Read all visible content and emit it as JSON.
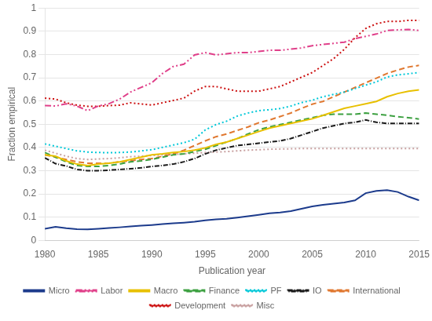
{
  "chart_data": {
    "type": "line",
    "xlabel": "Publication year",
    "ylabel": "Fraction empirical",
    "x": [
      1980,
      1981,
      1982,
      1983,
      1984,
      1985,
      1986,
      1987,
      1988,
      1989,
      1990,
      1991,
      1992,
      1993,
      1994,
      1995,
      1996,
      1997,
      1998,
      1999,
      2000,
      2001,
      2002,
      2003,
      2004,
      2005,
      2006,
      2007,
      2008,
      2009,
      2010,
      2011,
      2012,
      2013,
      2014,
      2015
    ],
    "series": [
      {
        "name": "Micro",
        "color": "#1c3b8c",
        "line_style": "solid",
        "values": [
          0.05,
          0.058,
          0.052,
          0.048,
          0.047,
          0.05,
          0.053,
          0.056,
          0.06,
          0.063,
          0.066,
          0.07,
          0.073,
          0.076,
          0.08,
          0.086,
          0.09,
          0.093,
          0.098,
          0.104,
          0.11,
          0.116,
          0.12,
          0.126,
          0.136,
          0.146,
          0.153,
          0.158,
          0.163,
          0.172,
          0.203,
          0.213,
          0.216,
          0.208,
          0.188,
          0.172
        ]
      },
      {
        "name": "Labor",
        "color": "#e0408a",
        "line_style": "dashdotdot",
        "values": [
          0.58,
          0.578,
          0.588,
          0.578,
          0.558,
          0.578,
          0.588,
          0.608,
          0.638,
          0.658,
          0.678,
          0.718,
          0.748,
          0.758,
          0.798,
          0.808,
          0.798,
          0.803,
          0.808,
          0.808,
          0.813,
          0.818,
          0.818,
          0.823,
          0.828,
          0.838,
          0.843,
          0.848,
          0.853,
          0.868,
          0.878,
          0.888,
          0.903,
          0.906,
          0.908,
          0.903
        ]
      },
      {
        "name": "Macro",
        "color": "#e8c000",
        "line_style": "solid",
        "values": [
          0.368,
          0.362,
          0.342,
          0.328,
          0.322,
          0.328,
          0.332,
          0.338,
          0.348,
          0.358,
          0.368,
          0.372,
          0.378,
          0.382,
          0.388,
          0.398,
          0.413,
          0.423,
          0.438,
          0.453,
          0.468,
          0.483,
          0.493,
          0.503,
          0.513,
          0.523,
          0.538,
          0.553,
          0.568,
          0.578,
          0.588,
          0.598,
          0.618,
          0.632,
          0.642,
          0.648
        ]
      },
      {
        "name": "Finance",
        "color": "#3ca040",
        "line_style": "dashed",
        "values": [
          0.378,
          0.358,
          0.338,
          0.322,
          0.318,
          0.318,
          0.322,
          0.328,
          0.338,
          0.342,
          0.348,
          0.358,
          0.368,
          0.372,
          0.382,
          0.392,
          0.408,
          0.423,
          0.438,
          0.458,
          0.476,
          0.488,
          0.498,
          0.508,
          0.518,
          0.528,
          0.538,
          0.543,
          0.543,
          0.543,
          0.548,
          0.543,
          0.538,
          0.532,
          0.528,
          0.522
        ]
      },
      {
        "name": "PF",
        "color": "#00c8d8",
        "line_style": "dotted",
        "values": [
          0.415,
          0.405,
          0.395,
          0.385,
          0.38,
          0.378,
          0.377,
          0.378,
          0.38,
          0.385,
          0.39,
          0.4,
          0.41,
          0.42,
          0.435,
          0.475,
          0.498,
          0.513,
          0.535,
          0.548,
          0.558,
          0.562,
          0.567,
          0.578,
          0.593,
          0.603,
          0.618,
          0.628,
          0.638,
          0.653,
          0.668,
          0.682,
          0.703,
          0.712,
          0.717,
          0.722
        ]
      },
      {
        "name": "IO",
        "color": "#1a1a1a",
        "line_style": "dashdot",
        "values": [
          0.355,
          0.33,
          0.32,
          0.305,
          0.3,
          0.3,
          0.302,
          0.305,
          0.308,
          0.312,
          0.318,
          0.322,
          0.328,
          0.338,
          0.352,
          0.372,
          0.388,
          0.398,
          0.408,
          0.413,
          0.418,
          0.423,
          0.428,
          0.438,
          0.453,
          0.468,
          0.483,
          0.493,
          0.503,
          0.508,
          0.518,
          0.508,
          0.503,
          0.503,
          0.503,
          0.503
        ]
      },
      {
        "name": "International",
        "color": "#e07830",
        "line_style": "dashed",
        "values": [
          0.368,
          0.358,
          0.348,
          0.338,
          0.332,
          0.332,
          0.332,
          0.338,
          0.342,
          0.348,
          0.352,
          0.362,
          0.372,
          0.388,
          0.408,
          0.428,
          0.446,
          0.458,
          0.473,
          0.488,
          0.506,
          0.518,
          0.533,
          0.548,
          0.568,
          0.586,
          0.598,
          0.618,
          0.638,
          0.658,
          0.678,
          0.698,
          0.718,
          0.733,
          0.746,
          0.753
        ]
      },
      {
        "name": "Development",
        "color": "#cc1010",
        "line_style": "dotted",
        "values": [
          0.612,
          0.608,
          0.592,
          0.582,
          0.577,
          0.577,
          0.58,
          0.582,
          0.592,
          0.587,
          0.582,
          0.592,
          0.602,
          0.612,
          0.642,
          0.662,
          0.662,
          0.652,
          0.642,
          0.642,
          0.642,
          0.652,
          0.662,
          0.682,
          0.702,
          0.722,
          0.752,
          0.782,
          0.822,
          0.872,
          0.912,
          0.932,
          0.942,
          0.942,
          0.947,
          0.947
        ]
      },
      {
        "name": "Misc",
        "color": "#c8a0a0",
        "line_style": "dotted",
        "values": [
          0.388,
          0.375,
          0.362,
          0.352,
          0.348,
          0.35,
          0.352,
          0.355,
          0.36,
          0.362,
          0.365,
          0.368,
          0.37,
          0.372,
          0.375,
          0.378,
          0.38,
          0.382,
          0.385,
          0.388,
          0.39,
          0.392,
          0.393,
          0.394,
          0.395,
          0.395,
          0.395,
          0.395,
          0.395,
          0.395,
          0.395,
          0.395,
          0.395,
          0.395,
          0.395,
          0.395
        ]
      }
    ],
    "xlim": [
      1980,
      2015
    ],
    "xticks": [
      1980,
      1985,
      1990,
      1995,
      2000,
      2005,
      2010,
      2015
    ],
    "ylim": [
      0,
      1
    ],
    "yticks": [
      0,
      0.1,
      0.2,
      0.3,
      0.4,
      0.5,
      0.6,
      0.7,
      0.8,
      0.9,
      1
    ],
    "grid": "y",
    "legend": "bottom"
  }
}
